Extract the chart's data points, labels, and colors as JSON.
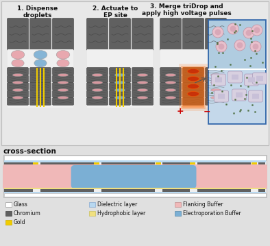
{
  "bg_color": "#e0e0e0",
  "title_color": "#222222",
  "step1_title": "1. Dispense\ndroplets",
  "step2_title": "2. Actuate to\nEP site",
  "step3_title": "3. Merge triDrop and\napply high voltage pulses",
  "cross_section_label": "cross-section",
  "pink_color": "#e8a0a8",
  "blue_color": "#7bafd4",
  "dark_gray": "#606060",
  "light_blue": "#aed6f1",
  "yellow": "#f0cc00",
  "red": "#cc0000",
  "top_bg": "#e8e8e8",
  "inset_bg": "#a8c8e8",
  "cell_pink": "#d8a8b8",
  "cell_purple": "#c8b8d8",
  "cell_edge": "#a08090",
  "cargo_color": "#446633",
  "cs_pink": "#f0b8b8",
  "cs_blue": "#7bafd4",
  "cs_glass": "#ffffff",
  "cs_chrome": "#606060",
  "cs_dielectric": "#b8d8f0",
  "cs_hydrophobic": "#f0e080",
  "legend_items": [
    {
      "label": "Glass",
      "color": "#ffffff",
      "edge": "#999999",
      "col": 0,
      "row": 0
    },
    {
      "label": "Chromium",
      "color": "#606060",
      "edge": "#404040",
      "col": 0,
      "row": 1
    },
    {
      "label": "Gold",
      "color": "#f0cc00",
      "edge": "#c8aa00",
      "col": 0,
      "row": 2
    },
    {
      "label": "Dielectric layer",
      "color": "#b8d8f0",
      "edge": "#88aad0",
      "col": 1,
      "row": 0
    },
    {
      "label": "Hydrophobic layer",
      "color": "#f0e080",
      "edge": "#c8c060",
      "col": 1,
      "row": 1
    },
    {
      "label": "Flanking Buffer",
      "color": "#f0b8b8",
      "edge": "#c09090",
      "col": 2,
      "row": 0
    },
    {
      "label": "Electroporation Buffer",
      "color": "#7bafd4",
      "edge": "#5588aa",
      "col": 2,
      "row": 1
    }
  ]
}
